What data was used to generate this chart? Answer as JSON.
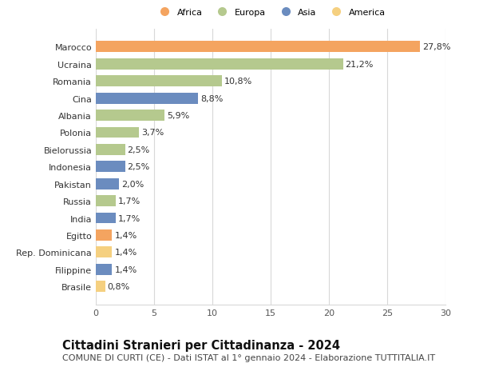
{
  "categories": [
    "Brasile",
    "Filippine",
    "Rep. Dominicana",
    "Egitto",
    "India",
    "Russia",
    "Pakistan",
    "Indonesia",
    "Bielorussia",
    "Polonia",
    "Albania",
    "Cina",
    "Romania",
    "Ucraina",
    "Marocco"
  ],
  "values": [
    0.8,
    1.4,
    1.4,
    1.4,
    1.7,
    1.7,
    2.0,
    2.5,
    2.5,
    3.7,
    5.9,
    8.8,
    10.8,
    21.2,
    27.8
  ],
  "labels": [
    "0,8%",
    "1,4%",
    "1,4%",
    "1,4%",
    "1,7%",
    "1,7%",
    "2,0%",
    "2,5%",
    "2,5%",
    "3,7%",
    "5,9%",
    "8,8%",
    "10,8%",
    "21,2%",
    "27,8%"
  ],
  "bar_colors": [
    "#F5D080",
    "#6B8CBF",
    "#F5D080",
    "#F4A460",
    "#6B8CBF",
    "#B5C98E",
    "#6B8CBF",
    "#6B8CBF",
    "#B5C98E",
    "#B5C98E",
    "#B5C98E",
    "#6B8CBF",
    "#B5C98E",
    "#B5C98E",
    "#F4A460"
  ],
  "legend_order": [
    "Africa",
    "Europa",
    "Asia",
    "America"
  ],
  "legend_colors": [
    "#F4A460",
    "#B5C98E",
    "#6B8CBF",
    "#F5D080"
  ],
  "xlim": [
    0,
    30
  ],
  "xticks": [
    0,
    5,
    10,
    15,
    20,
    25,
    30
  ],
  "title": "Cittadini Stranieri per Cittadinanza - 2024",
  "subtitle": "COMUNE DI CURTI (CE) - Dati ISTAT al 1° gennaio 2024 - Elaborazione TUTTITALIA.IT",
  "background_color": "#ffffff",
  "grid_color": "#d8d8d8",
  "title_fontsize": 10.5,
  "subtitle_fontsize": 8.0,
  "label_fontsize": 8.0,
  "tick_fontsize": 8.0,
  "bar_height": 0.65
}
